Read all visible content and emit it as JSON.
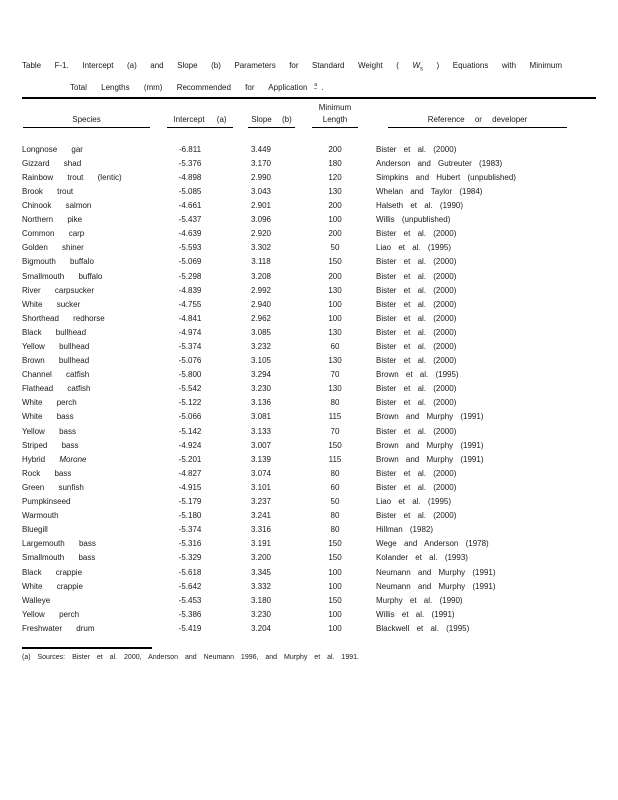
{
  "page": {
    "background": "#ffffff",
    "text_color": "#1a1a1a",
    "rule_color": "#000000"
  },
  "title": {
    "line1_before_ws": "Table F-1. Intercept (a) and Slope (b) Parameters for Standard Weight",
    "ws_open": "(",
    "ws_w": "W",
    "ws_s": "s",
    "ws_close": ")",
    "line1_after_ws": "Equations with Minimum",
    "line2_text": "Total Lengths (mm) Recommended for Application",
    "line2_superscript": "a",
    "line2_period": "."
  },
  "table": {
    "headers": {
      "species": "Species",
      "intercept": "Intercept (a)",
      "slope": "Slope (b)",
      "min_top": "Minimum",
      "min_bottom": "Length",
      "reference": "Reference or developer"
    },
    "italic_species_words": [
      "Morone"
    ],
    "rows": [
      {
        "species": "Longnose gar",
        "intercept": "-6.811",
        "slope": "3.449",
        "min_length": "200",
        "reference": "Bister et al. (2000)"
      },
      {
        "species": "Gizzard shad",
        "intercept": "-5.376",
        "slope": "3.170",
        "min_length": "180",
        "reference": "Anderson and Gutreuter (1983)"
      },
      {
        "species": "Rainbow trout (lentic)",
        "intercept": "-4.898",
        "slope": "2.990",
        "min_length": "120",
        "reference": "Simpkins and Hubert (unpublished)"
      },
      {
        "species": "Brook trout",
        "intercept": "-5.085",
        "slope": "3.043",
        "min_length": "130",
        "reference": "Whelan and Taylor (1984)"
      },
      {
        "species": "Chinook salmon",
        "intercept": "-4.661",
        "slope": "2.901",
        "min_length": "200",
        "reference": "Halseth et al. (1990)"
      },
      {
        "species": "Northern pike",
        "intercept": "-5.437",
        "slope": "3.096",
        "min_length": "100",
        "reference": "Willis (unpublished)"
      },
      {
        "species": "Common carp",
        "intercept": "-4.639",
        "slope": "2.920",
        "min_length": "200",
        "reference": "Bister et al. (2000)"
      },
      {
        "species": "Golden shiner",
        "intercept": "-5.593",
        "slope": "3.302",
        "min_length": "50",
        "reference": "Liao et al. (1995)"
      },
      {
        "species": "Bigmouth buffalo",
        "intercept": "-5.069",
        "slope": "3.118",
        "min_length": "150",
        "reference": "Bister et al. (2000)"
      },
      {
        "species": "Smallmouth buffalo",
        "intercept": "-5.298",
        "slope": "3.208",
        "min_length": "200",
        "reference": "Bister et al. (2000)"
      },
      {
        "species": "River carpsucker",
        "intercept": "-4.839",
        "slope": "2.992",
        "min_length": "130",
        "reference": "Bister et al. (2000)"
      },
      {
        "species": "White sucker",
        "intercept": "-4.755",
        "slope": "2.940",
        "min_length": "100",
        "reference": "Bister et al. (2000)"
      },
      {
        "species": "Shorthead redhorse",
        "intercept": "-4.841",
        "slope": "2.962",
        "min_length": "100",
        "reference": "Bister et al. (2000)"
      },
      {
        "species": "Black bullhead",
        "intercept": "-4.974",
        "slope": "3.085",
        "min_length": "130",
        "reference": "Bister et al. (2000)"
      },
      {
        "species": "Yellow bullhead",
        "intercept": "-5.374",
        "slope": "3.232",
        "min_length": "60",
        "reference": "Bister et al. (2000)"
      },
      {
        "species": "Brown bullhead",
        "intercept": "-5.076",
        "slope": "3.105",
        "min_length": "130",
        "reference": "Bister et al. (2000)"
      },
      {
        "species": "Channel catfish",
        "intercept": "-5.800",
        "slope": "3.294",
        "min_length": "70",
        "reference": "Brown et al. (1995)"
      },
      {
        "species": "Flathead catfish",
        "intercept": "-5.542",
        "slope": "3.230",
        "min_length": "130",
        "reference": "Bister et al. (2000)"
      },
      {
        "species": "White perch",
        "intercept": "-5.122",
        "slope": "3.136",
        "min_length": "80",
        "reference": "Bister et al. (2000)"
      },
      {
        "species": "White bass",
        "intercept": "-5.066",
        "slope": "3.081",
        "min_length": "115",
        "reference": "Brown and Murphy (1991)"
      },
      {
        "species": "Yellow bass",
        "intercept": "-5.142",
        "slope": "3.133",
        "min_length": "70",
        "reference": "Bister et al. (2000)"
      },
      {
        "species": "Striped bass",
        "intercept": "-4.924",
        "slope": "3.007",
        "min_length": "150",
        "reference": "Brown and Murphy (1991)"
      },
      {
        "species": "Hybrid Morone",
        "intercept": "-5.201",
        "slope": "3.139",
        "min_length": "115",
        "reference": "Brown and Murphy (1991)"
      },
      {
        "species": "Rock bass",
        "intercept": "-4.827",
        "slope": "3.074",
        "min_length": "80",
        "reference": "Bister et al. (2000)"
      },
      {
        "species": "Green sunfish",
        "intercept": "-4.915",
        "slope": "3.101",
        "min_length": "60",
        "reference": "Bister et al. (2000)"
      },
      {
        "species": "Pumpkinseed",
        "intercept": "-5.179",
        "slope": "3.237",
        "min_length": "50",
        "reference": "Liao et al. (1995)"
      },
      {
        "species": "Warmouth",
        "intercept": "-5.180",
        "slope": "3.241",
        "min_length": "80",
        "reference": "Bister et al. (2000)"
      },
      {
        "species": "Bluegill",
        "intercept": "-5.374",
        "slope": "3.316",
        "min_length": "80",
        "reference": "Hillman (1982)"
      },
      {
        "species": "Largemouth bass",
        "intercept": "-5.316",
        "slope": "3.191",
        "min_length": "150",
        "reference": "Wege and Anderson (1978)"
      },
      {
        "species": "Smallmouth bass",
        "intercept": "-5.329",
        "slope": "3.200",
        "min_length": "150",
        "reference": "Kolander et al. (1993)"
      },
      {
        "species": "Black crappie",
        "intercept": "-5.618",
        "slope": "3.345",
        "min_length": "100",
        "reference": "Neumann and Murphy (1991)"
      },
      {
        "species": "White crappie",
        "intercept": "-5.642",
        "slope": "3.332",
        "min_length": "100",
        "reference": "Neumann and Murphy (1991)"
      },
      {
        "species": "Walleye",
        "intercept": "-5.453",
        "slope": "3.180",
        "min_length": "150",
        "reference": "Murphy et al. (1990)"
      },
      {
        "species": "Yellow perch",
        "intercept": "-5.386",
        "slope": "3.230",
        "min_length": "100",
        "reference": "Willis et al. (1991)"
      },
      {
        "species": "Freshwater drum",
        "intercept": "-5.419",
        "slope": "3.204",
        "min_length": "100",
        "reference": "Blackwell et al. (1995)"
      }
    ]
  },
  "footnote": {
    "text": "(a) Sources: Bister et al. 2000, Anderson and Neumann 1996, and Murphy et al. 1991."
  }
}
